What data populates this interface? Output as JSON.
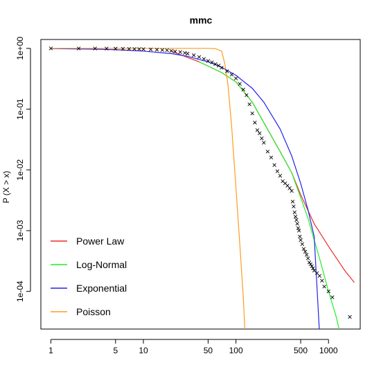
{
  "chart_data": {
    "type": "scatter",
    "title": "mmc",
    "xlabel": "",
    "ylabel": "P (X > x)",
    "x_scale": "log",
    "y_scale": "log",
    "xlim": [
      0.78,
      2200
    ],
    "ylim": [
      2.4e-05,
      1.4
    ],
    "grid": false,
    "legend_position": "bottom-left",
    "x_ticks": [
      1,
      5,
      10,
      50,
      100,
      500,
      1000
    ],
    "x_tick_labels": [
      "1",
      "5",
      "10",
      "50",
      "100",
      "500",
      "1000"
    ],
    "y_ticks": [
      1,
      0.1,
      0.01,
      0.001,
      0.0001
    ],
    "y_tick_labels": [
      "1e+00",
      "1e-01",
      "1e-02",
      "1e-03",
      "1e-04"
    ],
    "series": [
      {
        "name": "Power Law",
        "color": "#ee2a2a",
        "kind": "line",
        "x": [
          20,
          40,
          70,
          100,
          150,
          200,
          300,
          400,
          500,
          700,
          1000,
          1500,
          1900
        ],
        "y": [
          0.9,
          0.6,
          0.4,
          0.28,
          0.13,
          0.06,
          0.02,
          0.009,
          0.0039,
          0.0013,
          0.00055,
          0.00022,
          0.00014
        ]
      },
      {
        "name": "Log-Normal",
        "color": "#22ee22",
        "kind": "line",
        "x": [
          40,
          70,
          100,
          150,
          200,
          300,
          400,
          500,
          600,
          700,
          800,
          1000,
          1200,
          1400
        ],
        "y": [
          0.6,
          0.4,
          0.28,
          0.13,
          0.06,
          0.02,
          0.009,
          0.0035,
          0.0016,
          0.0007,
          0.00035,
          0.0001,
          4e-05,
          1.5e-05
        ]
      },
      {
        "name": "Exponential",
        "color": "#2222ee",
        "kind": "line",
        "x": [
          1,
          3,
          5,
          10,
          20,
          30,
          50,
          70,
          100,
          150,
          200,
          300,
          400,
          500,
          600,
          700,
          800
        ],
        "y": [
          0.99,
          0.97,
          0.95,
          0.9,
          0.82,
          0.74,
          0.6,
          0.49,
          0.36,
          0.22,
          0.13,
          0.047,
          0.017,
          0.006,
          0.0022,
          0.0008,
          2e-05
        ]
      },
      {
        "name": "Poisson",
        "color": "#ff9922",
        "kind": "line",
        "x": [
          1,
          50,
          60,
          70,
          76,
          82,
          90,
          100,
          110,
          120,
          128
        ],
        "y": [
          1.0,
          1.0,
          0.99,
          0.9,
          0.55,
          0.25,
          0.05,
          0.005,
          0.0006,
          8e-05,
          1e-05
        ]
      },
      {
        "name": "",
        "color": "#000000",
        "kind": "points",
        "x": [
          1,
          2,
          3,
          4,
          5,
          6,
          7,
          8,
          9,
          10,
          12,
          14,
          16,
          18,
          20,
          22,
          25,
          28,
          30,
          35,
          40,
          45,
          50,
          55,
          60,
          65,
          70,
          80,
          90,
          100,
          110,
          120,
          130,
          140,
          150,
          160,
          170,
          180,
          190,
          200,
          220,
          240,
          260,
          280,
          300,
          320,
          340,
          360,
          380,
          400,
          410,
          420,
          430,
          440,
          450,
          460,
          470,
          480,
          490,
          500,
          520,
          540,
          560,
          580,
          600,
          620,
          640,
          660,
          680,
          700,
          750,
          800,
          850,
          900,
          1000,
          1100,
          1700
        ],
        "y": [
          0.998,
          0.997,
          0.995,
          0.992,
          0.988,
          0.985,
          0.981,
          0.977,
          0.973,
          0.969,
          0.96,
          0.95,
          0.94,
          0.93,
          0.91,
          0.89,
          0.87,
          0.84,
          0.82,
          0.77,
          0.72,
          0.67,
          0.62,
          0.59,
          0.55,
          0.52,
          0.48,
          0.42,
          0.37,
          0.32,
          0.26,
          0.21,
          0.17,
          0.12,
          0.085,
          0.06,
          0.045,
          0.04,
          0.033,
          0.028,
          0.02,
          0.016,
          0.012,
          0.0095,
          0.008,
          0.0065,
          0.006,
          0.0055,
          0.005,
          0.0045,
          0.003,
          0.0025,
          0.002,
          0.0017,
          0.0015,
          0.0013,
          0.0011,
          0.001,
          0.0008,
          0.0007,
          0.0006,
          0.0005,
          0.00045,
          0.0004,
          0.00035,
          0.0003,
          0.00028,
          0.00026,
          0.00024,
          0.00022,
          0.0002,
          0.00018,
          0.00015,
          0.00012,
          0.0001,
          8e-05,
          3.8e-05
        ]
      }
    ]
  }
}
